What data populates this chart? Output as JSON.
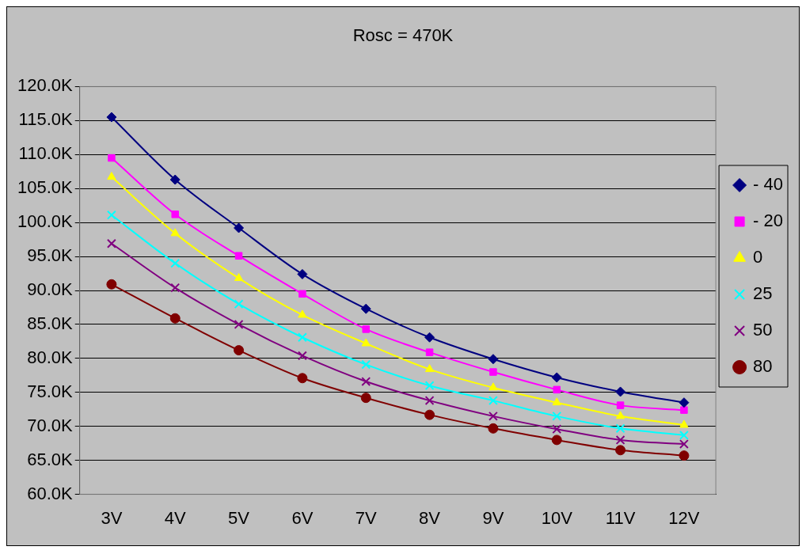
{
  "chart_data": {
    "type": "line",
    "title": "Rosc = 470K",
    "categories": [
      "3V",
      "4V",
      "5V",
      "6V",
      "7V",
      "8V",
      "9V",
      "10V",
      "11V",
      "12V"
    ],
    "series": [
      {
        "name": "- 40",
        "color": "#000080",
        "marker": "diamond",
        "values": [
          115.5,
          106.3,
          99.2,
          92.4,
          87.3,
          83.1,
          79.9,
          77.2,
          75.1,
          73.5
        ]
      },
      {
        "name": "- 20",
        "color": "#ff00ff",
        "marker": "square",
        "values": [
          109.5,
          101.2,
          95.1,
          89.5,
          84.3,
          80.9,
          78.0,
          75.4,
          73.1,
          72.4
        ]
      },
      {
        "name": "0",
        "color": "#ffff00",
        "marker": "triangle",
        "values": [
          106.7,
          98.4,
          91.8,
          86.4,
          82.2,
          78.4,
          75.7,
          73.5,
          71.5,
          70.2
        ]
      },
      {
        "name": "25",
        "color": "#00ffff",
        "marker": "cross",
        "values": [
          101.1,
          94.0,
          88.0,
          83.1,
          79.1,
          76.0,
          73.8,
          71.5,
          69.7,
          68.7
        ]
      },
      {
        "name": "50",
        "color": "#800080",
        "marker": "cross",
        "values": [
          96.9,
          90.4,
          85.0,
          80.4,
          76.6,
          73.8,
          71.5,
          69.6,
          68.0,
          67.4
        ]
      },
      {
        "name": "80",
        "color": "#800000",
        "marker": "circle",
        "values": [
          90.9,
          85.9,
          81.2,
          77.1,
          74.2,
          71.7,
          69.7,
          68.0,
          66.5,
          65.7
        ]
      }
    ],
    "ylim": [
      60,
      120
    ],
    "yticks": [
      {
        "value": 60,
        "label": "60.0K"
      },
      {
        "value": 65,
        "label": "65.0K"
      },
      {
        "value": 70,
        "label": "70.0K"
      },
      {
        "value": 75,
        "label": "75.0K"
      },
      {
        "value": 80,
        "label": "80.0K"
      },
      {
        "value": 85,
        "label": "85.0K"
      },
      {
        "value": 90,
        "label": "90.0K"
      },
      {
        "value": 95,
        "label": "95.0K"
      },
      {
        "value": 100,
        "label": "100.0K"
      },
      {
        "value": 105,
        "label": "105.0K"
      },
      {
        "value": 110,
        "label": "110.0K"
      },
      {
        "value": 115,
        "label": "115.0K"
      },
      {
        "value": 120,
        "label": "120.0K"
      }
    ],
    "grid": "y",
    "legend": "right",
    "line_style": "solid"
  }
}
